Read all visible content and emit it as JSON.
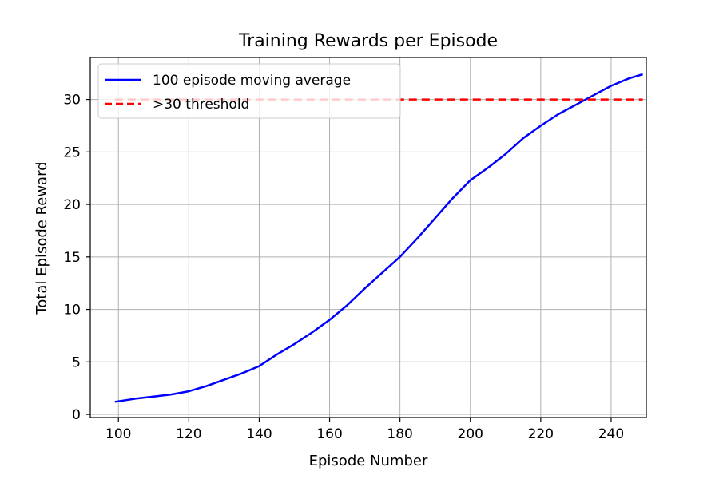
{
  "chart_data": {
    "type": "line",
    "title": "Training Rewards per Episode",
    "xlabel": "Episode Number",
    "ylabel": "Total Episode Reward",
    "xlim": [
      92,
      250
    ],
    "ylim": [
      -0.3,
      34
    ],
    "xticks": [
      100,
      120,
      140,
      160,
      180,
      200,
      220,
      240
    ],
    "yticks": [
      0,
      5,
      10,
      15,
      20,
      25,
      30
    ],
    "grid": true,
    "legend_position": "top-left",
    "series": [
      {
        "name": "100 episode moving average",
        "color": "#0000ff",
        "style": "solid",
        "x": [
          99,
          105,
          110,
          115,
          120,
          125,
          130,
          135,
          140,
          145,
          150,
          155,
          160,
          165,
          170,
          175,
          180,
          185,
          190,
          195,
          200,
          205,
          210,
          215,
          220,
          225,
          230,
          235,
          240,
          245,
          249
        ],
        "y": [
          1.2,
          1.5,
          1.7,
          1.9,
          2.2,
          2.7,
          3.3,
          3.9,
          4.6,
          5.7,
          6.7,
          7.8,
          9.0,
          10.4,
          12.0,
          13.5,
          15.0,
          16.8,
          18.7,
          20.6,
          22.3,
          23.5,
          24.8,
          26.3,
          27.5,
          28.6,
          29.5,
          30.4,
          31.3,
          32.0,
          32.4
        ]
      },
      {
        "name": ">30 threshold",
        "color": "#ff0000",
        "style": "dashed",
        "x": [
          99,
          249
        ],
        "y": [
          30,
          30
        ]
      }
    ]
  }
}
